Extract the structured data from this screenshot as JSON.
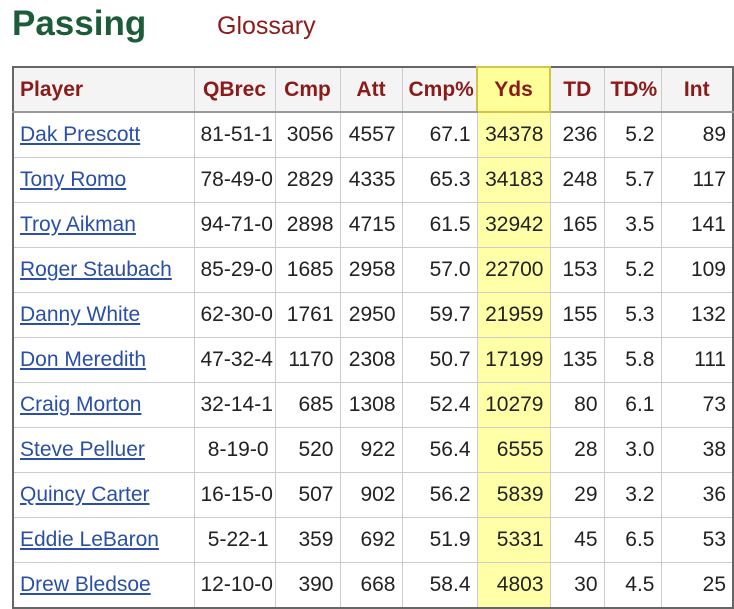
{
  "header": {
    "title": "Passing",
    "link": "Glossary"
  },
  "table": {
    "columns": [
      "Player",
      "QBrec",
      "Cmp",
      "Att",
      "Cmp%",
      "Yds",
      "TD",
      "TD%",
      "Int"
    ],
    "rows": [
      [
        "Dak Prescott",
        "81-51-1",
        "3056",
        "4557",
        "67.1",
        "34378",
        "236",
        "5.2",
        "89"
      ],
      [
        "Tony Romo",
        "78-49-0",
        "2829",
        "4335",
        "65.3",
        "34183",
        "248",
        "5.7",
        "117"
      ],
      [
        "Troy Aikman",
        "94-71-0",
        "2898",
        "4715",
        "61.5",
        "32942",
        "165",
        "3.5",
        "141"
      ],
      [
        "Roger Staubach",
        "85-29-0",
        "1685",
        "2958",
        "57.0",
        "22700",
        "153",
        "5.2",
        "109"
      ],
      [
        "Danny White",
        "62-30-0",
        "1761",
        "2950",
        "59.7",
        "21959",
        "155",
        "5.3",
        "132"
      ],
      [
        "Don Meredith",
        "47-32-4",
        "1170",
        "2308",
        "50.7",
        "17199",
        "135",
        "5.8",
        "111"
      ],
      [
        "Craig Morton",
        "32-14-1",
        "685",
        "1308",
        "52.4",
        "10279",
        "80",
        "6.1",
        "73"
      ],
      [
        "Steve Pelluer",
        "8-19-0",
        "520",
        "922",
        "56.4",
        "6555",
        "28",
        "3.0",
        "38"
      ],
      [
        "Quincy Carter",
        "16-15-0",
        "507",
        "902",
        "56.2",
        "5839",
        "29",
        "3.2",
        "36"
      ],
      [
        "Eddie LeBaron",
        "5-22-1",
        "359",
        "692",
        "51.9",
        "5331",
        "45",
        "6.5",
        "53"
      ],
      [
        "Drew Bledsoe",
        "12-10-0",
        "390",
        "668",
        "58.4",
        "4803",
        "30",
        "4.5",
        "25"
      ]
    ]
  }
}
